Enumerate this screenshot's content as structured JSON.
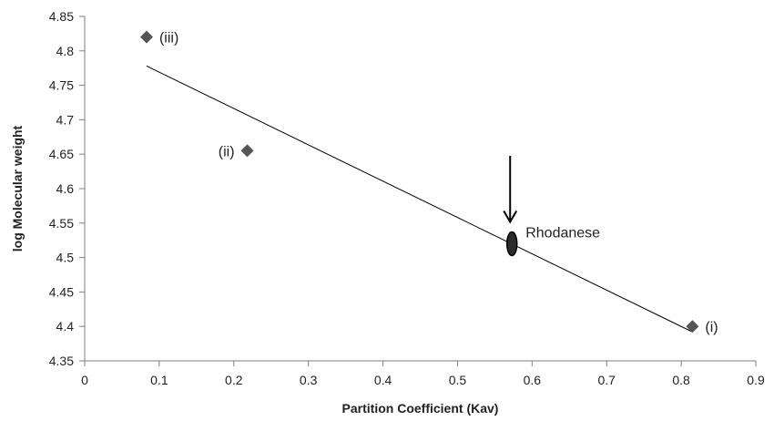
{
  "chart_data": {
    "type": "scatter",
    "title": "",
    "xlabel": "Partition Coefficient (Kav)",
    "ylabel": "log Molecular weight",
    "xlim": [
      0,
      0.9
    ],
    "ylim": [
      4.35,
      4.85
    ],
    "xticks": [
      0,
      0.1,
      0.2,
      0.3,
      0.4,
      0.5,
      0.6,
      0.7,
      0.8,
      0.9
    ],
    "yticks": [
      4.35,
      4.4,
      4.45,
      4.5,
      4.55,
      4.6,
      4.65,
      4.7,
      4.75,
      4.8,
      4.85
    ],
    "xtick_labels": [
      "0",
      "0.1",
      "0.2",
      "0.3",
      "0.4",
      "0.5",
      "0.6",
      "0.7",
      "0.8",
      "0.9"
    ],
    "ytick_labels": [
      "4.35",
      "4.4",
      "4.45",
      "4.5",
      "4.55",
      "4.6",
      "4.65",
      "4.7",
      "4.75",
      "4.8",
      "4.85"
    ],
    "grid": false,
    "legend": "none",
    "points": [
      {
        "label": "(i)",
        "x": 0.815,
        "y": 4.4
      },
      {
        "label": "(ii)",
        "x": 0.218,
        "y": 4.655
      },
      {
        "label": "(iii)",
        "x": 0.083,
        "y": 4.82
      }
    ],
    "trendline": {
      "x": [
        0.083,
        0.815
      ],
      "y": [
        4.778,
        4.392
      ]
    },
    "annotation": {
      "label": "Rhodanese",
      "x": 0.573,
      "y": 4.52,
      "arrow": true
    },
    "colors": {
      "marker": "#555555",
      "line": "#000000",
      "axis": "#7f7f7f"
    }
  }
}
